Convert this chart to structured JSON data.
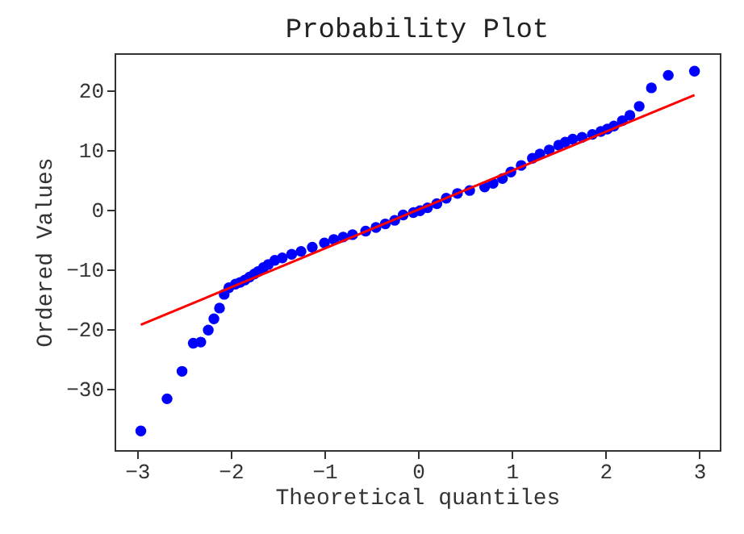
{
  "chart_data": {
    "type": "scatter",
    "title": "Probability Plot",
    "xlabel": "Theoretical quantiles",
    "ylabel": "Ordered Values",
    "xlim": [
      -3.24,
      3.22
    ],
    "ylim": [
      -40.3,
      26.2
    ],
    "xticks": [
      -3,
      -2,
      -1,
      0,
      1,
      2,
      3
    ],
    "yticks": [
      -30,
      -20,
      -10,
      0,
      10,
      20
    ],
    "grid": false,
    "series": [
      {
        "marker": "circle",
        "color": "#0000ff",
        "x": [
          -2.96,
          -2.68,
          -2.52,
          -2.4,
          -2.32,
          -2.24,
          -2.18,
          -2.12,
          -2.07,
          -2.02,
          -1.95,
          -1.9,
          -1.85,
          -1.8,
          -1.75,
          -1.71,
          -1.65,
          -1.6,
          -1.53,
          -1.45,
          -1.35,
          -1.25,
          -1.13,
          -1.0,
          -0.9,
          -0.8,
          -0.7,
          -0.56,
          -0.45,
          -0.35,
          -0.25,
          -0.16,
          -0.05,
          0.02,
          0.1,
          0.2,
          0.3,
          0.42,
          0.55,
          0.71,
          0.8,
          0.9,
          0.99,
          1.1,
          1.22,
          1.3,
          1.4,
          1.5,
          1.57,
          1.65,
          1.75,
          1.86,
          1.95,
          2.02,
          2.09,
          2.18,
          2.26,
          2.36,
          2.49,
          2.67,
          2.95
        ],
        "values": [
          -37.1,
          -31.7,
          -27.1,
          -22.4,
          -22.2,
          -20.2,
          -18.3,
          -16.5,
          -14.2,
          -13.1,
          -12.5,
          -12.2,
          -11.8,
          -11.3,
          -10.8,
          -10.4,
          -9.7,
          -9.2,
          -8.5,
          -8.1,
          -7.5,
          -7.0,
          -6.3,
          -5.6,
          -5.0,
          -4.6,
          -4.2,
          -3.6,
          -3.0,
          -2.4,
          -1.8,
          -0.9,
          -0.5,
          -0.2,
          0.3,
          1.0,
          1.9,
          2.7,
          3.2,
          3.8,
          4.4,
          5.2,
          6.3,
          7.4,
          8.6,
          9.3,
          10.0,
          10.8,
          11.3,
          11.8,
          12.1,
          12.6,
          13.1,
          13.5,
          14.0,
          14.9,
          15.8,
          17.3,
          20.4,
          22.5,
          23.2
        ]
      },
      {
        "type": "line",
        "color": "#ff0000",
        "x": [
          -2.96,
          2.95
        ],
        "values": [
          -19.3,
          19.2
        ]
      }
    ]
  }
}
